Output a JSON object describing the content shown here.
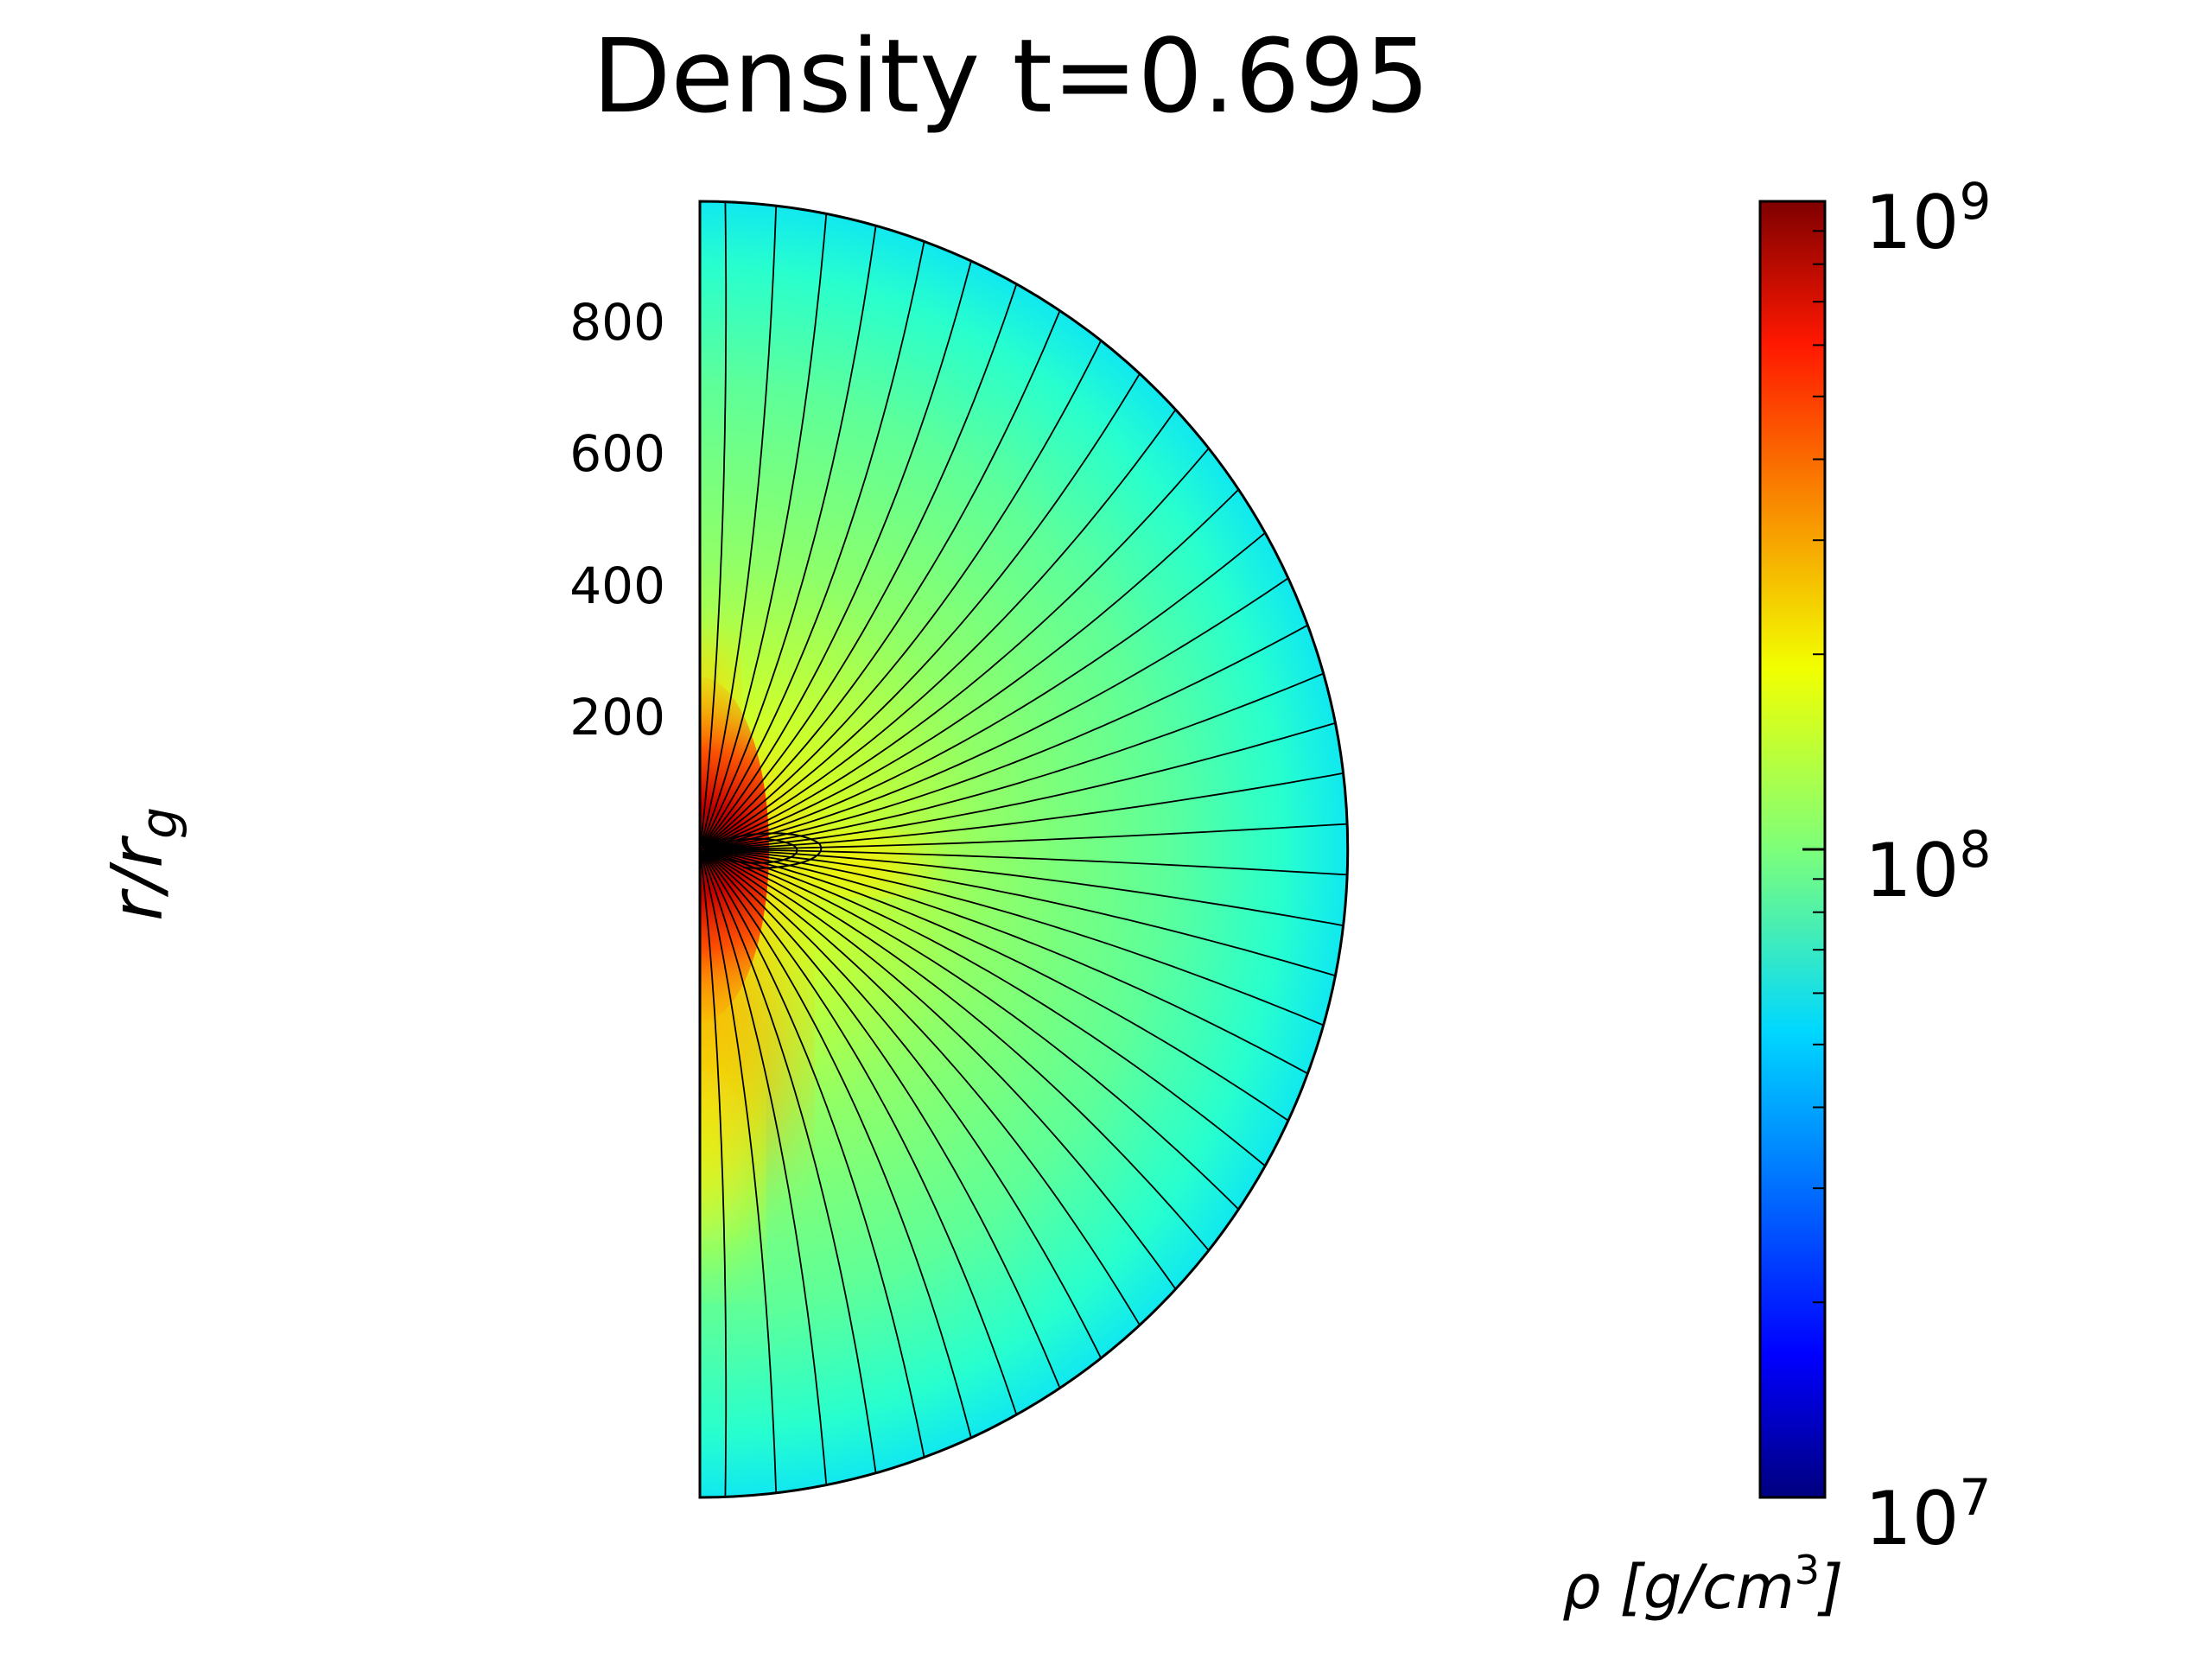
{
  "chart_data": {
    "type": "heatmap",
    "title": "Density t=0.695",
    "ylabel": "r/r_g",
    "ylabel_base": "r/r",
    "ylabel_sub": "g",
    "yticks": [
      "200",
      "400",
      "600",
      "800"
    ],
    "radial_extent": 1000,
    "colormap": "jet",
    "colorbar": {
      "scale": "log",
      "range": [
        10000000,
        1000000000
      ],
      "ticks": [
        {
          "base": "10",
          "exp": "7",
          "value": 10000000
        },
        {
          "base": "10",
          "exp": "8",
          "value": 100000000
        },
        {
          "base": "10",
          "exp": "9",
          "value": 1000000000
        }
      ],
      "label_prefix": "ρ [g/cm",
      "label_exp": "3",
      "label_suffix": "]"
    },
    "field_lines": 40,
    "colors": {
      "low": "#00007f",
      "mid": "#7dff7a",
      "high": "#7f0000"
    }
  }
}
